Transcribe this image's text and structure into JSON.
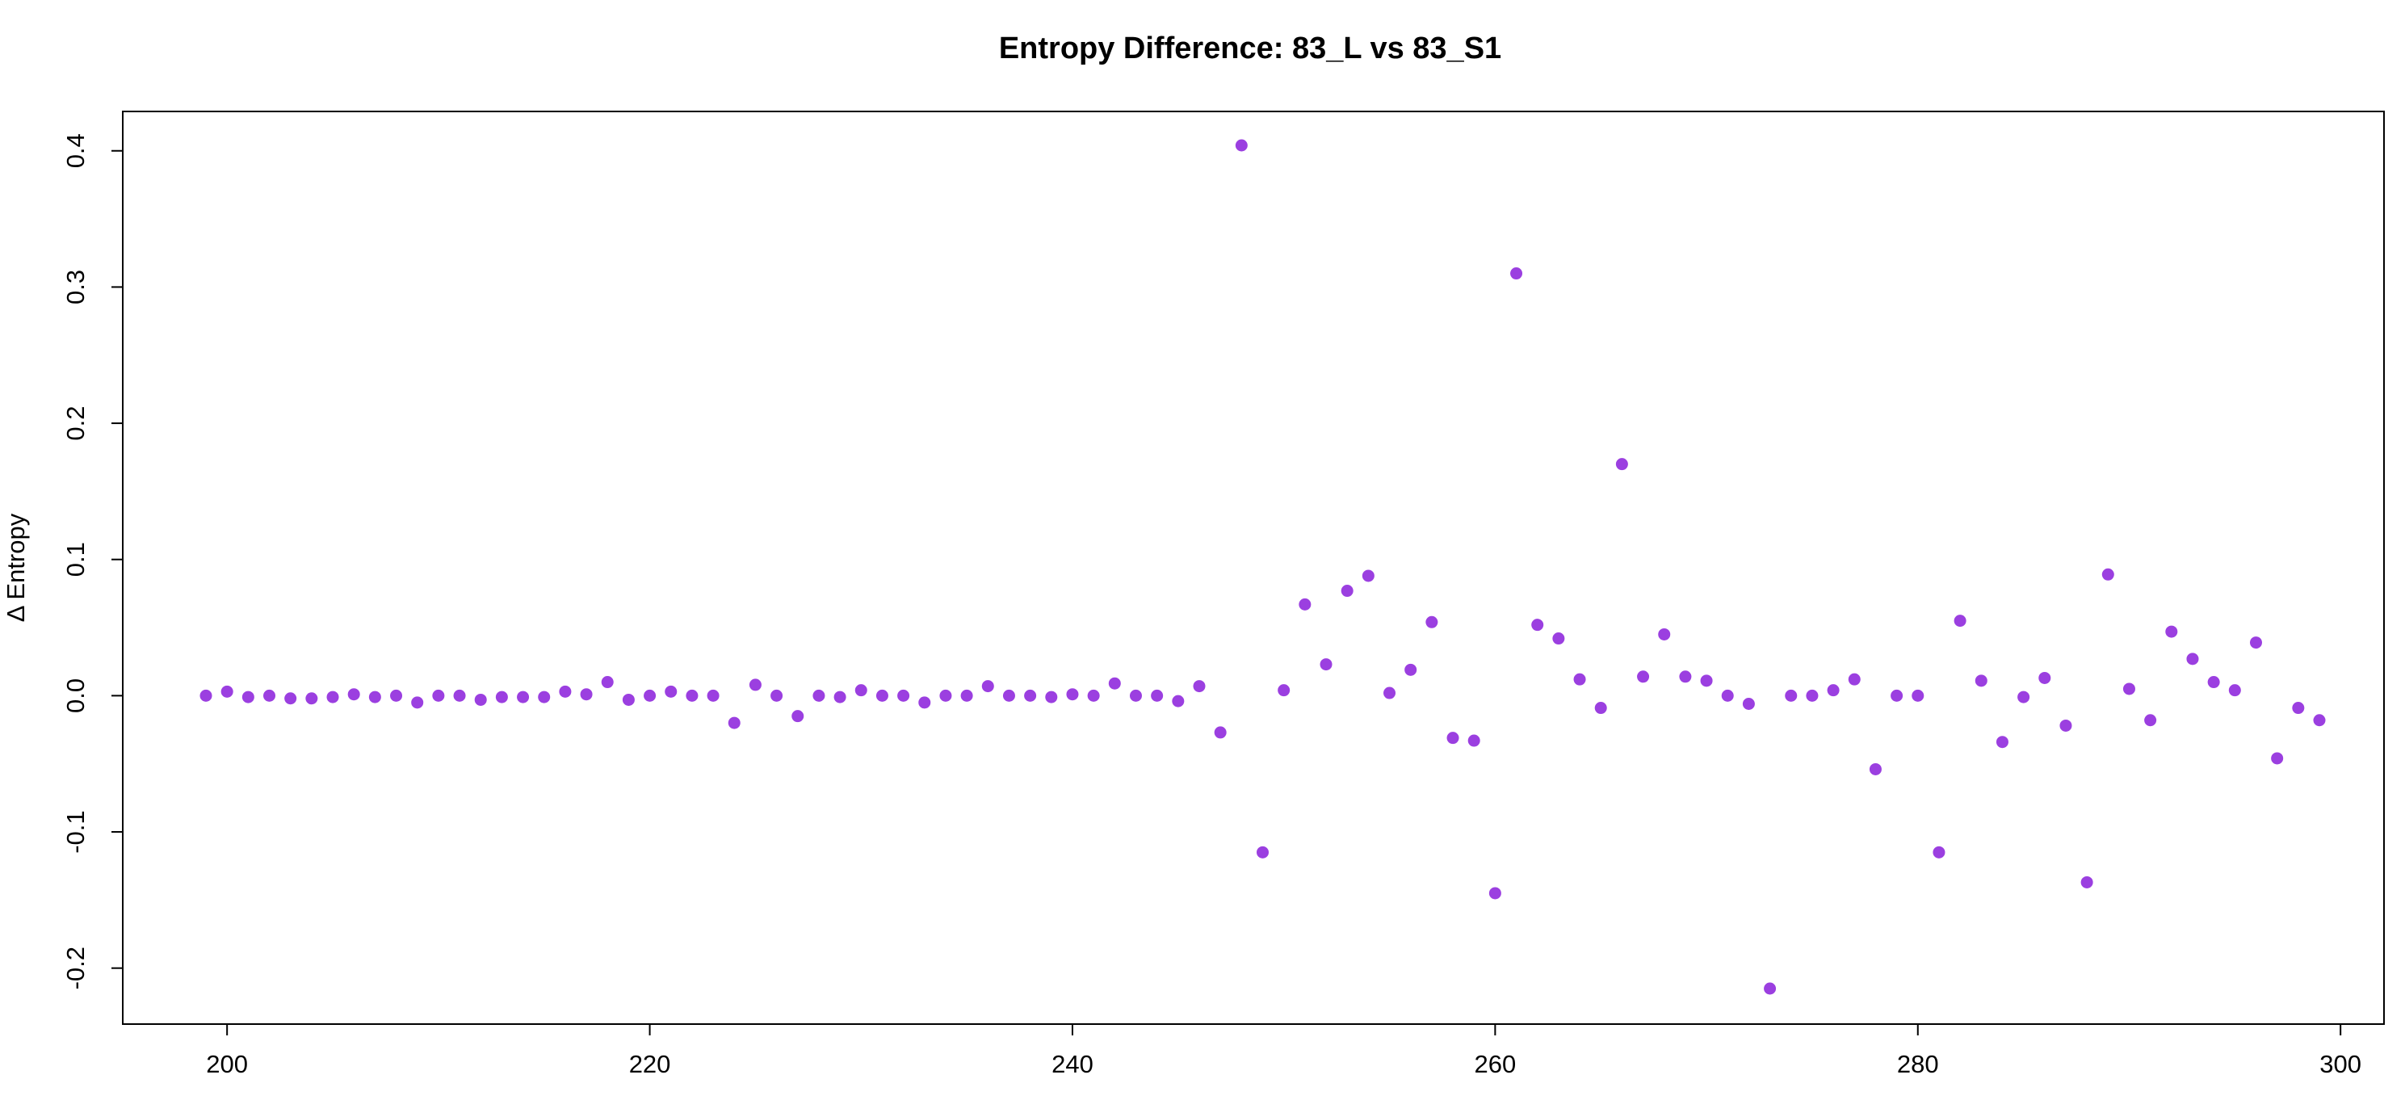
{
  "chart_data": {
    "type": "scatter",
    "title": "Entropy Difference: 83_L vs 83_S1",
    "xlabel": "",
    "ylabel": "Δ Entropy",
    "xlim": [
      199,
      299
    ],
    "ylim": [
      -0.215,
      0.404
    ],
    "x_ticks": [
      200,
      220,
      240,
      260,
      280,
      300
    ],
    "x_tick_labels": [
      "200",
      "220",
      "240",
      "260",
      "280",
      "300"
    ],
    "y_ticks": [
      -0.2,
      -0.1,
      0.0,
      0.1,
      0.2,
      0.3,
      0.4
    ],
    "y_tick_labels": [
      "-0.2",
      "-0.1",
      "0.0",
      "0.1",
      "0.2",
      "0.3",
      "0.4"
    ],
    "grid": false,
    "point_color": "#9B3FE0",
    "x": [
      199,
      200,
      201,
      202,
      203,
      204,
      205,
      206,
      207,
      208,
      209,
      210,
      211,
      212,
      213,
      214,
      215,
      216,
      217,
      218,
      219,
      220,
      221,
      222,
      223,
      224,
      225,
      226,
      227,
      228,
      229,
      230,
      231,
      232,
      233,
      234,
      235,
      236,
      237,
      238,
      239,
      240,
      241,
      242,
      243,
      244,
      245,
      246,
      247,
      248,
      249,
      250,
      251,
      252,
      253,
      254,
      255,
      256,
      257,
      258,
      259,
      260,
      261,
      262,
      263,
      264,
      265,
      266,
      267,
      268,
      269,
      270,
      271,
      272,
      273,
      274,
      275,
      276,
      277,
      278,
      279,
      280,
      281,
      282,
      283,
      284,
      285,
      286,
      287,
      288,
      289,
      290,
      291,
      292,
      293,
      294,
      295,
      296,
      297,
      298,
      299
    ],
    "y": [
      0.0,
      0.003,
      -0.001,
      0.0,
      -0.002,
      -0.002,
      -0.001,
      0.001,
      -0.001,
      0.0,
      -0.005,
      0.0,
      0.0,
      -0.003,
      -0.001,
      -0.001,
      -0.001,
      0.003,
      0.001,
      0.01,
      -0.003,
      0.0,
      0.003,
      0.0,
      0.0,
      -0.02,
      0.008,
      0.0,
      -0.015,
      0.0,
      -0.001,
      0.004,
      0.0,
      0.0,
      -0.005,
      0.0,
      0.0,
      0.007,
      0.0,
      0.0,
      -0.001,
      0.001,
      0.0,
      0.009,
      0.0,
      0.0,
      -0.004,
      0.007,
      -0.027,
      0.404,
      -0.115,
      0.004,
      0.067,
      0.023,
      0.077,
      0.088,
      0.002,
      0.019,
      0.054,
      -0.031,
      -0.033,
      -0.145,
      0.31,
      0.052,
      0.042,
      0.012,
      -0.009,
      0.17,
      0.014,
      0.045,
      0.014,
      0.011,
      0.0,
      -0.006,
      -0.215,
      0.0,
      0.0,
      0.004,
      0.012,
      -0.054,
      0.0,
      0.0,
      -0.115,
      0.055,
      0.011,
      -0.034,
      -0.001,
      0.013,
      -0.022,
      -0.137,
      0.089,
      0.005,
      -0.018,
      0.047,
      0.027,
      0.01,
      0.004,
      0.039,
      -0.046,
      -0.009,
      -0.018
    ]
  }
}
